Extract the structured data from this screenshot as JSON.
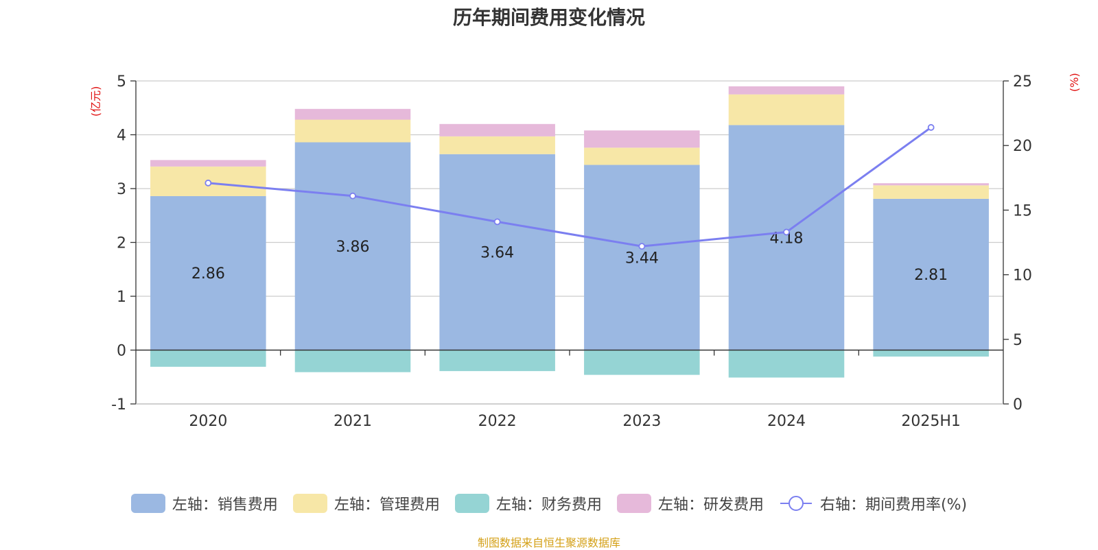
{
  "title": "历年期间费用变化情况",
  "left_unit": "(亿元)",
  "right_unit": "(%)",
  "source": "制图数据来自恒生聚源数据库",
  "chart_data": {
    "type": "bar",
    "stacked": true,
    "categories": [
      "2020",
      "2021",
      "2022",
      "2023",
      "2024",
      "2025H1"
    ],
    "series": [
      {
        "name": "左轴：销售费用",
        "axis": "left",
        "color": "#9bb8e2",
        "values": [
          2.86,
          3.86,
          3.64,
          3.44,
          4.18,
          2.81
        ],
        "show_labels": true
      },
      {
        "name": "左轴：管理费用",
        "axis": "left",
        "color": "#f7e7a7",
        "values": [
          0.55,
          0.42,
          0.33,
          0.32,
          0.57,
          0.25
        ]
      },
      {
        "name": "左轴：财务费用",
        "axis": "left",
        "color": "#95d4d4",
        "values": [
          -0.31,
          -0.41,
          -0.39,
          -0.46,
          -0.51,
          -0.12
        ]
      },
      {
        "name": "左轴：研发费用",
        "axis": "left",
        "color": "#e6b9da",
        "values": [
          0.12,
          0.2,
          0.23,
          0.32,
          0.15,
          0.04
        ]
      },
      {
        "name": "右轴：期间费用率(%)",
        "axis": "right",
        "type": "line",
        "color": "#7b7ff0",
        "values": [
          17.1,
          16.1,
          14.1,
          12.2,
          13.3,
          21.4
        ]
      }
    ],
    "y_left": {
      "min": -1,
      "max": 5,
      "ticks": [
        -1,
        0,
        1,
        2,
        3,
        4,
        5
      ]
    },
    "y_right": {
      "min": 0,
      "max": 25,
      "ticks": [
        0,
        5,
        10,
        15,
        20,
        25
      ]
    },
    "grid": true,
    "legend_position": "bottom"
  }
}
